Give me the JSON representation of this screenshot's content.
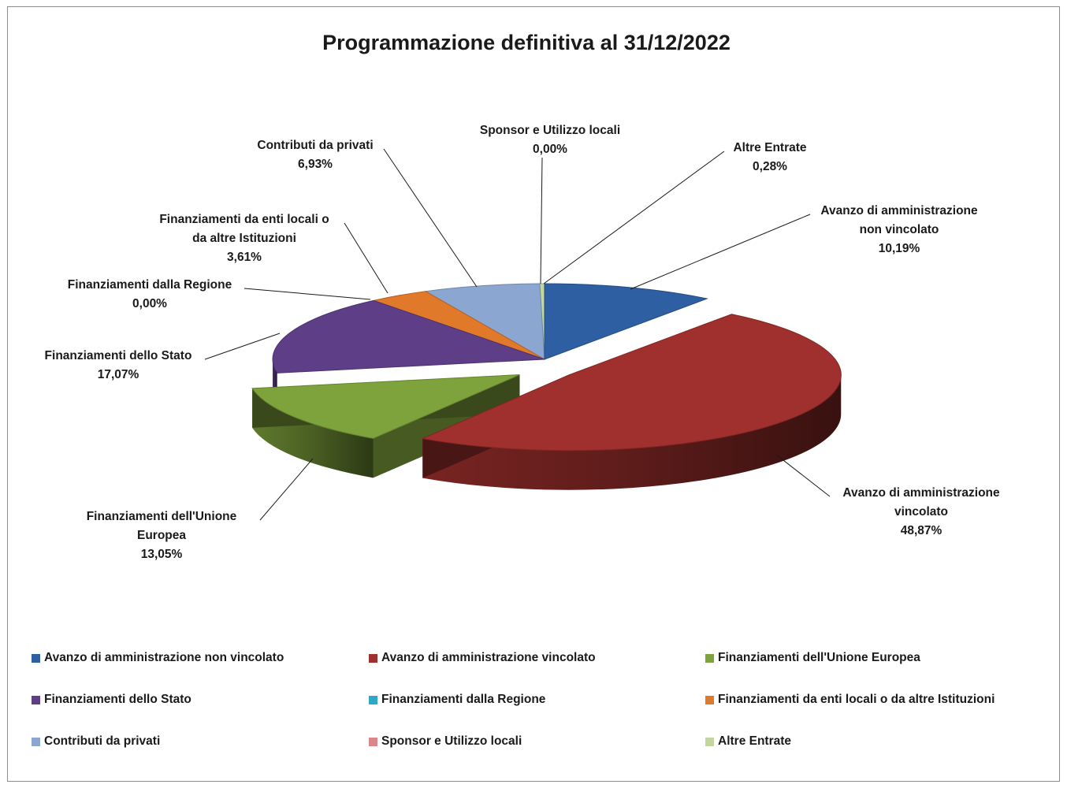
{
  "chart_data": {
    "type": "pie",
    "title": "Programmazione definitiva al 31/12/2022",
    "categories": [
      "Avanzo di amministrazione non vincolato",
      "Avanzo di amministrazione vincolato",
      "Finanziamenti dell'Unione Europea",
      "Finanziamenti dello Stato",
      "Finanziamenti dalla Regione",
      "Finanziamenti da enti locali o da altre Istituzioni",
      "Contributi da privati",
      "Sponsor e Utilizzo locali",
      "Altre Entrate"
    ],
    "values": [
      10.19,
      48.87,
      13.05,
      17.07,
      0.0,
      3.61,
      6.93,
      0.0,
      0.28
    ],
    "value_labels": [
      "10,19%",
      "48,87%",
      "13,05%",
      "17,07%",
      "0,00%",
      "3,61%",
      "6,93%",
      "0,00%",
      "0,28%"
    ],
    "slice_labels": [
      [
        "Avanzo di amministrazione",
        "non vincolato"
      ],
      [
        "Avanzo di amministrazione",
        "vincolato"
      ],
      [
        "Finanziamenti dell'Unione",
        "Europea"
      ],
      [
        "Finanziamenti dello Stato"
      ],
      [
        "Finanziamenti dalla Regione"
      ],
      [
        "Finanziamenti da enti locali o",
        "da altre Istituzioni"
      ],
      [
        "Contributi da privati"
      ],
      [
        "Sponsor e Utilizzo locali"
      ],
      [
        "Altre Entrate"
      ]
    ],
    "colors": [
      "#2E5FA3",
      "#A0302D",
      "#7FA33C",
      "#5E3F87",
      "#2DA9C6",
      "#E1792A",
      "#8BA7D1",
      "#D9878A",
      "#C3D69B"
    ],
    "legend_position": "bottom",
    "style": "3d-exploded"
  }
}
